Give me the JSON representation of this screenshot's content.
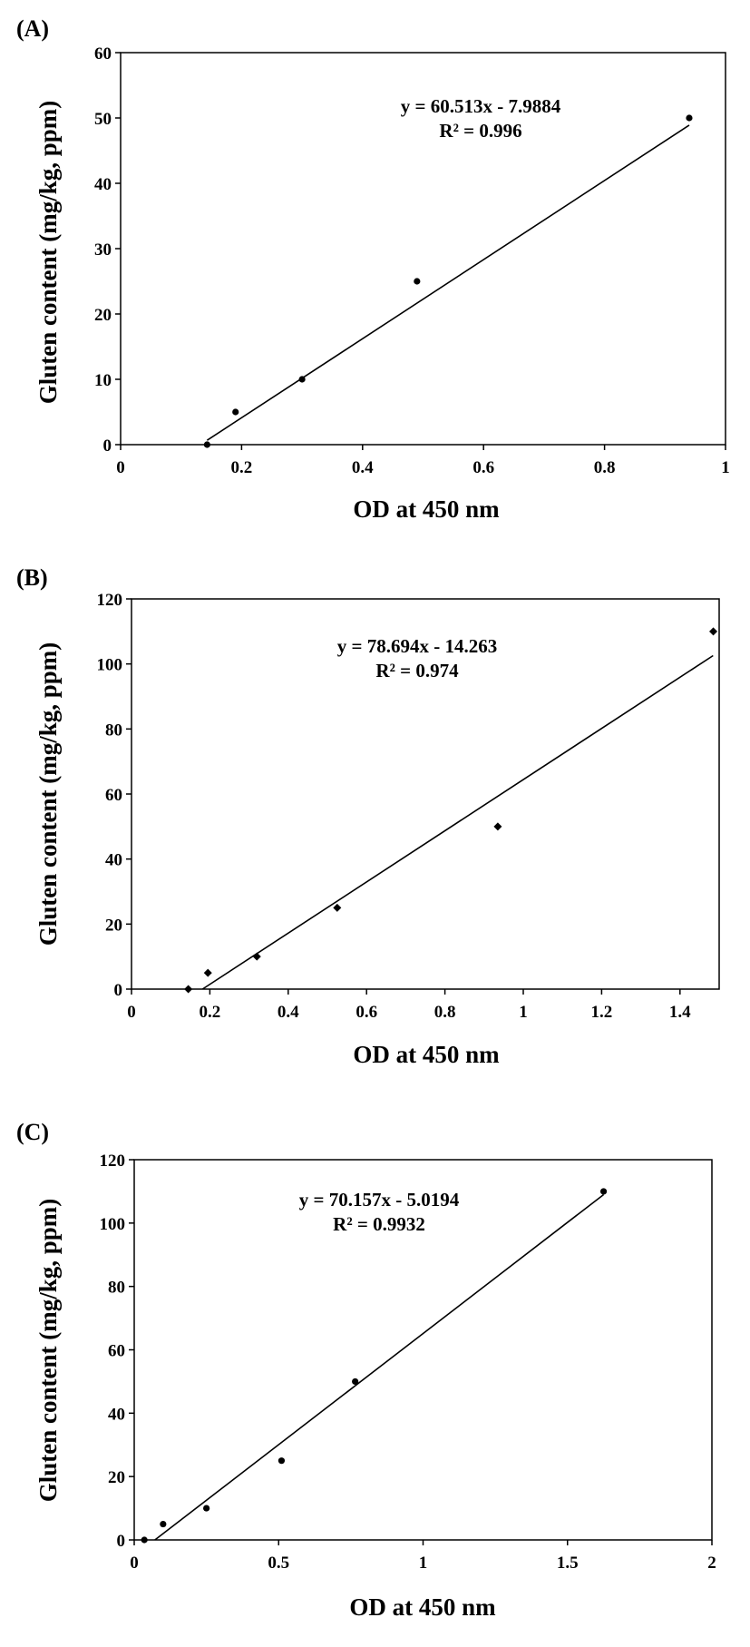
{
  "chart_data": [
    {
      "type": "scatter",
      "panel_label": "(A)",
      "xlabel": "OD at 450 nm",
      "ylabel": "Gluten content (mg/kg, ppm)",
      "xlim": [
        0,
        1
      ],
      "ylim": [
        0,
        60
      ],
      "xticks": [
        "0",
        "0.2",
        "0.4",
        "0.6",
        "0.8",
        "1"
      ],
      "yticks": [
        "0",
        "10",
        "20",
        "30",
        "40",
        "50",
        "60"
      ],
      "marker": "circle",
      "series": [
        {
          "x": [
            0.143,
            0.19,
            0.3,
            0.49,
            0.94
          ],
          "y": [
            0,
            5,
            10,
            25,
            50
          ]
        }
      ],
      "trendline": {
        "slope": 60.513,
        "intercept": -7.9884,
        "x_range": [
          0.143,
          0.94
        ]
      },
      "equation": "y = 60.513x - 7.9884",
      "r_squared": "R² = 0.996",
      "grid": false
    },
    {
      "type": "scatter",
      "panel_label": "(B)",
      "xlabel": "OD at 450 nm",
      "ylabel": "Gluten content (mg/kg, ppm)",
      "xlim": [
        0,
        1.5
      ],
      "ylim": [
        0,
        120
      ],
      "xticks": [
        "0",
        "0.2",
        "0.4",
        "0.6",
        "0.8",
        "1",
        "1.2",
        "1.4"
      ],
      "yticks": [
        "0",
        "20",
        "40",
        "60",
        "80",
        "100",
        "120"
      ],
      "marker": "diamond",
      "series": [
        {
          "x": [
            0.145,
            0.195,
            0.32,
            0.525,
            0.935,
            1.485
          ],
          "y": [
            0,
            5,
            10,
            25,
            50,
            110
          ]
        }
      ],
      "trendline": {
        "slope": 78.694,
        "intercept": -14.263,
        "x_range": [
          0.18125,
          1.4845
        ]
      },
      "equation": "y = 78.694x - 14.263",
      "r_squared": "R² = 0.974",
      "grid": false
    },
    {
      "type": "scatter",
      "panel_label": "(C)",
      "xlabel": "OD at 450 nm",
      "ylabel": "Gluten content (mg/kg, ppm)",
      "xlim": [
        0,
        2
      ],
      "ylim": [
        0,
        120
      ],
      "xticks": [
        "0",
        "0.5",
        "1",
        "1.5",
        "2"
      ],
      "yticks": [
        "0",
        "20",
        "40",
        "60",
        "80",
        "100",
        "120"
      ],
      "marker": "circle",
      "series": [
        {
          "x": [
            0.035,
            0.1,
            0.25,
            0.51,
            0.765,
            1.625
          ],
          "y": [
            0,
            5,
            10,
            25,
            50,
            110
          ]
        }
      ],
      "trendline": {
        "slope": 70.157,
        "intercept": -5.0194,
        "x_range": [
          0.0716,
          1.625
        ]
      },
      "equation": "y = 70.157x - 5.0194",
      "r_squared": "R² = 0.9932",
      "grid": false
    }
  ]
}
